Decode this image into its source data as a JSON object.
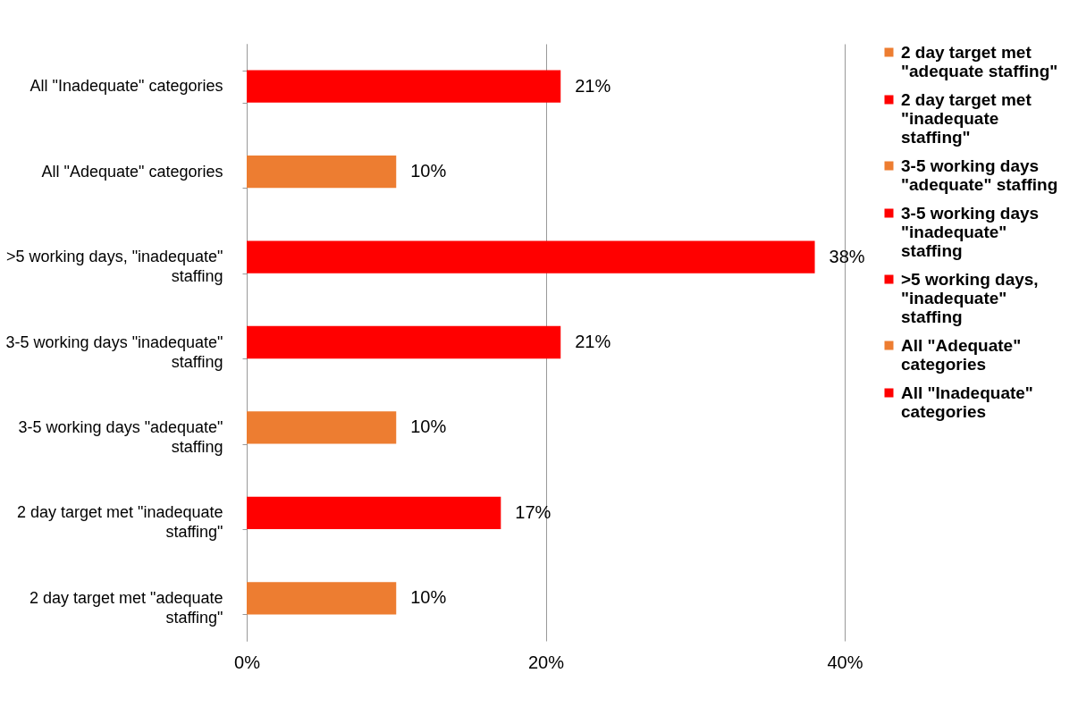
{
  "chart_data": {
    "type": "bar",
    "orientation": "horizontal",
    "categories": [
      "All \"Inadequate\" categories",
      "All \"Adequate\" categories",
      ">5 working days, \"inadequate\" staffing",
      "3-5 working days \"inadequate\" staffing",
      "3-5 working days \"adequate\" staffing",
      "2 day target met \"inadequate staffing\"",
      "2 day target met \"adequate staffing\""
    ],
    "series": [
      {
        "name": "2 day target met \"adequate staffing\"",
        "color": "#ed7d31",
        "values": [
          null,
          null,
          null,
          null,
          null,
          null,
          10
        ],
        "value_labels": [
          null,
          null,
          null,
          null,
          null,
          null,
          "10%"
        ]
      },
      {
        "name": "2 day target met \"inadequate staffing\"",
        "color": "#ff0000",
        "values": [
          null,
          null,
          null,
          null,
          null,
          17,
          null
        ],
        "value_labels": [
          null,
          null,
          null,
          null,
          null,
          "17%",
          null
        ]
      },
      {
        "name": "3-5 working days \"adequate\" staffing",
        "color": "#ed7d31",
        "values": [
          null,
          null,
          null,
          null,
          10,
          null,
          null
        ],
        "value_labels": [
          null,
          null,
          null,
          null,
          "10%",
          null,
          null
        ]
      },
      {
        "name": "3-5 working days \"inadequate\" staffing",
        "color": "#ff0000",
        "values": [
          null,
          null,
          null,
          21,
          null,
          null,
          null
        ],
        "value_labels": [
          null,
          null,
          null,
          "21%",
          null,
          null,
          null
        ]
      },
      {
        "name": ">5 working days, \"inadequate\" staffing",
        "color": "#ff0000",
        "values": [
          null,
          null,
          38,
          null,
          null,
          null,
          null
        ],
        "value_labels": [
          null,
          null,
          "38%",
          null,
          null,
          null,
          null
        ]
      },
      {
        "name": "All \"Adequate\" categories",
        "color": "#ed7d31",
        "values": [
          null,
          10,
          null,
          null,
          null,
          null,
          null
        ],
        "value_labels": [
          null,
          "10%",
          null,
          null,
          null,
          null,
          null
        ]
      },
      {
        "name": "All \"Inadequate\" categories",
        "color": "#ff0000",
        "values": [
          21,
          null,
          null,
          null,
          null,
          null,
          null
        ],
        "value_labels": [
          "21%",
          null,
          null,
          null,
          null,
          null,
          null
        ]
      }
    ],
    "xlim": [
      0,
      40
    ],
    "xticks": [
      {
        "value": 0,
        "label": "0%"
      },
      {
        "value": 20,
        "label": "20%"
      },
      {
        "value": 40,
        "label": "40%"
      }
    ],
    "grid": "x",
    "legend": "right"
  }
}
